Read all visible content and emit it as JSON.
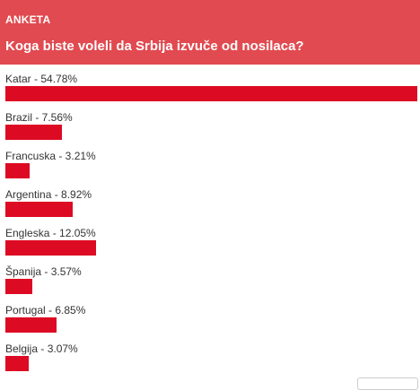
{
  "poll": {
    "kicker": "ANKETA",
    "question": "Koga biste voleli da Srbija izvuče od nosilaca?",
    "options": [
      {
        "label": "Katar - 54.78%",
        "percent": 54.78
      },
      {
        "label": "Brazil - 7.56%",
        "percent": 7.56
      },
      {
        "label": "Francuska - 3.21%",
        "percent": 3.21
      },
      {
        "label": "Argentina - 8.92%",
        "percent": 8.92
      },
      {
        "label": "Engleska - 12.05%",
        "percent": 12.05
      },
      {
        "label": "Španija - 3.57%",
        "percent": 3.57
      },
      {
        "label": "Portugal - 6.85%",
        "percent": 6.85
      },
      {
        "label": "Belgija - 3.07%",
        "percent": 3.07
      }
    ]
  },
  "colors": {
    "header_bg": "#e14a50",
    "bar": "#dd0a23"
  }
}
